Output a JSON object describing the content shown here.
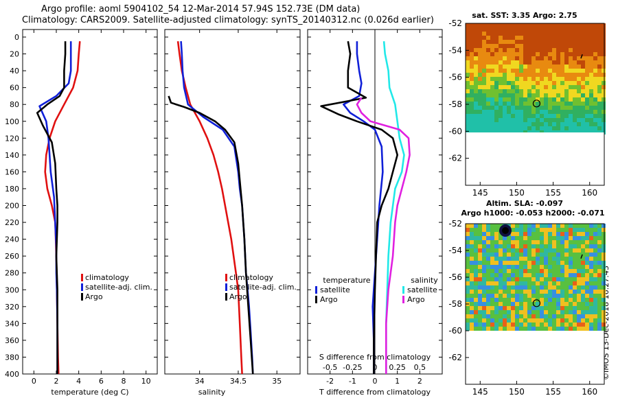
{
  "header": {
    "line1": "Argo profile: aoml 5904102_54 12-Mar-2014 57.94S 152.73E (DM data)",
    "line2": "Climatology: CARS2009. Satellite-adjusted climatology: synTS_20140312.nc (0.026d earlier)"
  },
  "credit": "©IMOS 13-Dec-2018 16:27:43",
  "colors": {
    "climatology": "#e01010",
    "satellite": "#1020d8",
    "argo": "#000000",
    "sat_salinity": "#20e8e8",
    "clim_salinity": "#e020e0"
  },
  "chart_data": [
    {
      "type": "line",
      "name": "temperature-profile",
      "xlabel": "temperature (deg C)",
      "ylabel": "",
      "xlim": [
        -1,
        11
      ],
      "ylim": [
        400,
        0
      ],
      "xticks": [
        "0",
        "2",
        "4",
        "6",
        "8",
        "10"
      ],
      "xtick_values": [
        0,
        2,
        4,
        6,
        8,
        10
      ],
      "yticks": [
        "0",
        "20",
        "40",
        "60",
        "80",
        "100",
        "120",
        "140",
        "160",
        "180",
        "200",
        "220",
        "240",
        "260",
        "280",
        "300",
        "320",
        "340",
        "360",
        "380",
        "400"
      ],
      "legend": [
        "climatology",
        "satellite-adj. clim.",
        "Argo"
      ],
      "series": [
        {
          "name": "climatology",
          "color": "#e01010",
          "x": [
            4.1,
            4.0,
            3.9,
            3.5,
            2.7,
            1.9,
            1.4,
            1.1,
            1.0,
            1.2,
            1.6,
            1.9,
            2.0,
            2.05,
            2.1,
            2.15,
            2.2
          ],
          "depth": [
            5,
            20,
            40,
            60,
            80,
            100,
            120,
            140,
            160,
            180,
            200,
            220,
            260,
            300,
            340,
            380,
            400
          ]
        },
        {
          "name": "satellite-adj. clim.",
          "color": "#1020d8",
          "x": [
            3.3,
            3.3,
            3.3,
            3.1,
            2.0,
            0.5,
            1.1,
            1.3,
            1.5,
            1.8,
            1.9,
            2.0,
            2.0,
            2.05,
            2.1,
            2.1,
            2.1
          ],
          "depth": [
            5,
            20,
            40,
            55,
            70,
            82,
            100,
            120,
            160,
            190,
            220,
            250,
            280,
            300,
            340,
            380,
            400
          ]
        },
        {
          "name": "Argo",
          "color": "#000000",
          "x": [
            2.8,
            2.8,
            2.7,
            2.7,
            2.3,
            1.2,
            0.3,
            0.8,
            1.6,
            1.9,
            2.0,
            2.1,
            2.1,
            2.0,
            2.1,
            2.1,
            2.1
          ],
          "depth": [
            5,
            20,
            40,
            60,
            70,
            80,
            90,
            105,
            125,
            150,
            180,
            200,
            220,
            260,
            300,
            360,
            400
          ]
        }
      ]
    },
    {
      "type": "line",
      "name": "salinity-profile",
      "xlabel": "salinity",
      "xlim": [
        33.55,
        35.3
      ],
      "ylim": [
        400,
        0
      ],
      "xticks": [
        "34",
        "34.5",
        "35"
      ],
      "xtick_values": [
        34,
        34.5,
        35
      ],
      "legend": [
        "climatology",
        "satellite-adj. clim.",
        "Argo"
      ],
      "series": [
        {
          "name": "climatology",
          "color": "#e01010",
          "x": [
            33.72,
            33.74,
            33.77,
            33.82,
            33.88,
            34.0,
            34.1,
            34.18,
            34.24,
            34.29,
            34.33,
            34.37,
            34.41,
            34.44,
            34.47,
            34.5,
            34.52,
            34.54,
            34.55
          ],
          "depth": [
            5,
            20,
            40,
            60,
            80,
            100,
            120,
            140,
            160,
            180,
            200,
            220,
            240,
            260,
            280,
            300,
            340,
            380,
            400
          ]
        },
        {
          "name": "satellite-adj. clim.",
          "color": "#1020d8",
          "x": [
            33.76,
            33.77,
            33.78,
            33.8,
            33.85,
            34.05,
            34.3,
            34.45,
            34.5,
            34.52,
            34.55,
            34.58,
            34.6,
            34.62,
            34.64,
            34.66,
            34.68,
            34.69
          ],
          "depth": [
            5,
            20,
            40,
            60,
            80,
            95,
            110,
            130,
            160,
            180,
            200,
            240,
            280,
            300,
            320,
            350,
            380,
            400
          ]
        },
        {
          "name": "Argo",
          "color": "#000000",
          "x": [
            33.6,
            33.63,
            33.8,
            34.0,
            34.2,
            34.33,
            34.45,
            34.5,
            34.53,
            34.55,
            34.58,
            34.6,
            34.63,
            34.66,
            34.69
          ],
          "depth": [
            70,
            78,
            83,
            90,
            100,
            110,
            125,
            150,
            180,
            200,
            240,
            280,
            320,
            360,
            400
          ]
        }
      ]
    },
    {
      "type": "line",
      "name": "difference-profile",
      "xlabel": "T difference from climatology",
      "secondary_xlabel": "S difference from climatology",
      "xlim": [
        -3,
        3
      ],
      "ylim": [
        400,
        0
      ],
      "xticks": [
        "-2",
        "-1",
        "0",
        "1",
        "2"
      ],
      "xtick_values": [
        -2,
        -1,
        0,
        1,
        2
      ],
      "sticks": [
        "-0.5",
        "-0.25",
        "0",
        "0.25",
        "0.5"
      ],
      "stick_values": [
        -2,
        -1,
        0,
        1,
        2
      ],
      "legend_left_title": "temperature",
      "legend_right_title": "salinity",
      "legend_left": [
        "satellite",
        "Argo"
      ],
      "legend_right": [
        "satellite",
        "Argo"
      ],
      "series": [
        {
          "name": "T satellite",
          "color": "#1020d8",
          "x": [
            -0.8,
            -0.8,
            -0.7,
            -0.6,
            -0.7,
            -1.4,
            -1.1,
            -0.5,
            0.0,
            0.3,
            0.35,
            0.2,
            0.1,
            0.0,
            -0.1,
            -0.05,
            -0.05
          ],
          "depth": [
            5,
            20,
            40,
            55,
            70,
            80,
            90,
            100,
            110,
            130,
            160,
            200,
            240,
            280,
            320,
            360,
            400
          ]
        },
        {
          "name": "T Argo",
          "color": "#000000",
          "x": [
            -1.2,
            -1.1,
            -1.2,
            -1.2,
            -0.4,
            -2.4,
            -1.6,
            -0.8,
            0.3,
            0.8,
            1.0,
            0.8,
            0.6,
            0.3,
            0.1,
            0.05,
            0.0,
            -0.05,
            -0.05
          ],
          "depth": [
            5,
            20,
            40,
            60,
            72,
            82,
            92,
            100,
            110,
            120,
            140,
            160,
            180,
            200,
            220,
            260,
            300,
            360,
            400
          ]
        },
        {
          "name": "S satellite",
          "color": "#20e8e8",
          "x": [
            0.4,
            0.45,
            0.6,
            0.65,
            0.9,
            1.0,
            1.1,
            1.3,
            1.2,
            0.9,
            0.7,
            0.6,
            0.55,
            0.5,
            0.5,
            0.5
          ],
          "depth": [
            5,
            20,
            40,
            60,
            80,
            100,
            120,
            140,
            160,
            180,
            220,
            260,
            300,
            340,
            380,
            400
          ]
        },
        {
          "name": "S Argo",
          "color": "#e020e0",
          "x": [
            -0.6,
            -0.8,
            -0.6,
            -0.2,
            1.1,
            1.5,
            1.55,
            1.4,
            1.2,
            1.0,
            0.9,
            0.8,
            0.6,
            0.5,
            0.5
          ],
          "depth": [
            72,
            80,
            90,
            100,
            110,
            120,
            140,
            160,
            180,
            200,
            220,
            260,
            300,
            340,
            400
          ]
        }
      ]
    }
  ],
  "maps": [
    {
      "title": "sat. SST: 3.35 Argo: 2.75",
      "xticks": [
        "145",
        "150",
        "155",
        "160"
      ],
      "xtick_values": [
        145,
        150,
        155,
        160
      ],
      "yticks": [
        "-52",
        "-54",
        "-56",
        "-58",
        "-60",
        "-62"
      ],
      "ytick_values": [
        -52,
        -54,
        -56,
        -58,
        -60,
        -62
      ]
    },
    {
      "title": "Altim. SLA: -0.097",
      "subtitle": "Argo h1000: -0.053 h2000: -0.071",
      "xticks": [
        "145",
        "150",
        "155",
        "160"
      ],
      "xtick_values": [
        145,
        150,
        155,
        160
      ],
      "yticks": [
        "-52",
        "-54",
        "-56",
        "-58",
        "-60",
        "-62"
      ],
      "ytick_values": [
        -52,
        -54,
        -56,
        -58,
        -60,
        -62
      ]
    }
  ]
}
